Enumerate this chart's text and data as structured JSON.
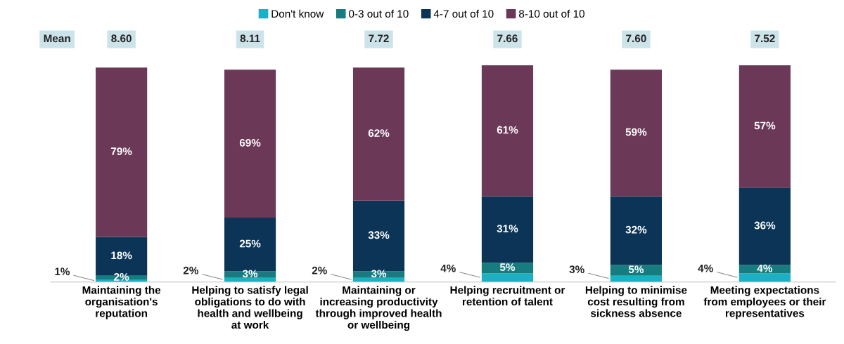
{
  "chart_data": {
    "type": "bar",
    "stacked": true,
    "legend": "top",
    "tick_labels": "x",
    "categories": [
      "Maintaining the\norganisation's\nreputation",
      "Helping to satisfy legal\nobligations to do with\nhealth and wellbeing\nat work",
      "Maintaining or\nincreasing productivity\nthrough improved health\nor wellbeing",
      "Helping recruitment or\nretention of talent",
      "Helping to minimise\ncost resulting from\nsickness absence",
      "Meeting expectations\nfrom employees or their\nrepresentatives"
    ],
    "series": [
      {
        "name": "Don't know",
        "color": "#1ab0c6",
        "values": [
          1,
          2,
          2,
          4,
          3,
          4
        ],
        "value_labels": [
          "1%",
          "2%",
          "2%",
          "4%",
          "3%",
          "4%"
        ]
      },
      {
        "name": "0-3 out of 10",
        "color": "#177c80",
        "values": [
          2,
          3,
          3,
          5,
          5,
          4
        ],
        "value_labels": [
          "2%",
          "3%",
          "3%",
          "5%",
          "5%",
          "4%"
        ]
      },
      {
        "name": "4-7 out of 10",
        "color": "#0b3456",
        "values": [
          18,
          25,
          33,
          31,
          32,
          36
        ],
        "value_labels": [
          "18%",
          "25%",
          "33%",
          "31%",
          "32%",
          "36%"
        ]
      },
      {
        "name": "8-10 out of 10",
        "color": "#6b3957",
        "values": [
          79,
          69,
          62,
          61,
          59,
          57
        ],
        "value_labels": [
          "79%",
          "69%",
          "62%",
          "61%",
          "59%",
          "57%"
        ]
      }
    ],
    "annotations": [
      "Mean",
      "8.60",
      "8.11",
      "7.72",
      "7.66",
      "7.60",
      "7.52"
    ]
  }
}
